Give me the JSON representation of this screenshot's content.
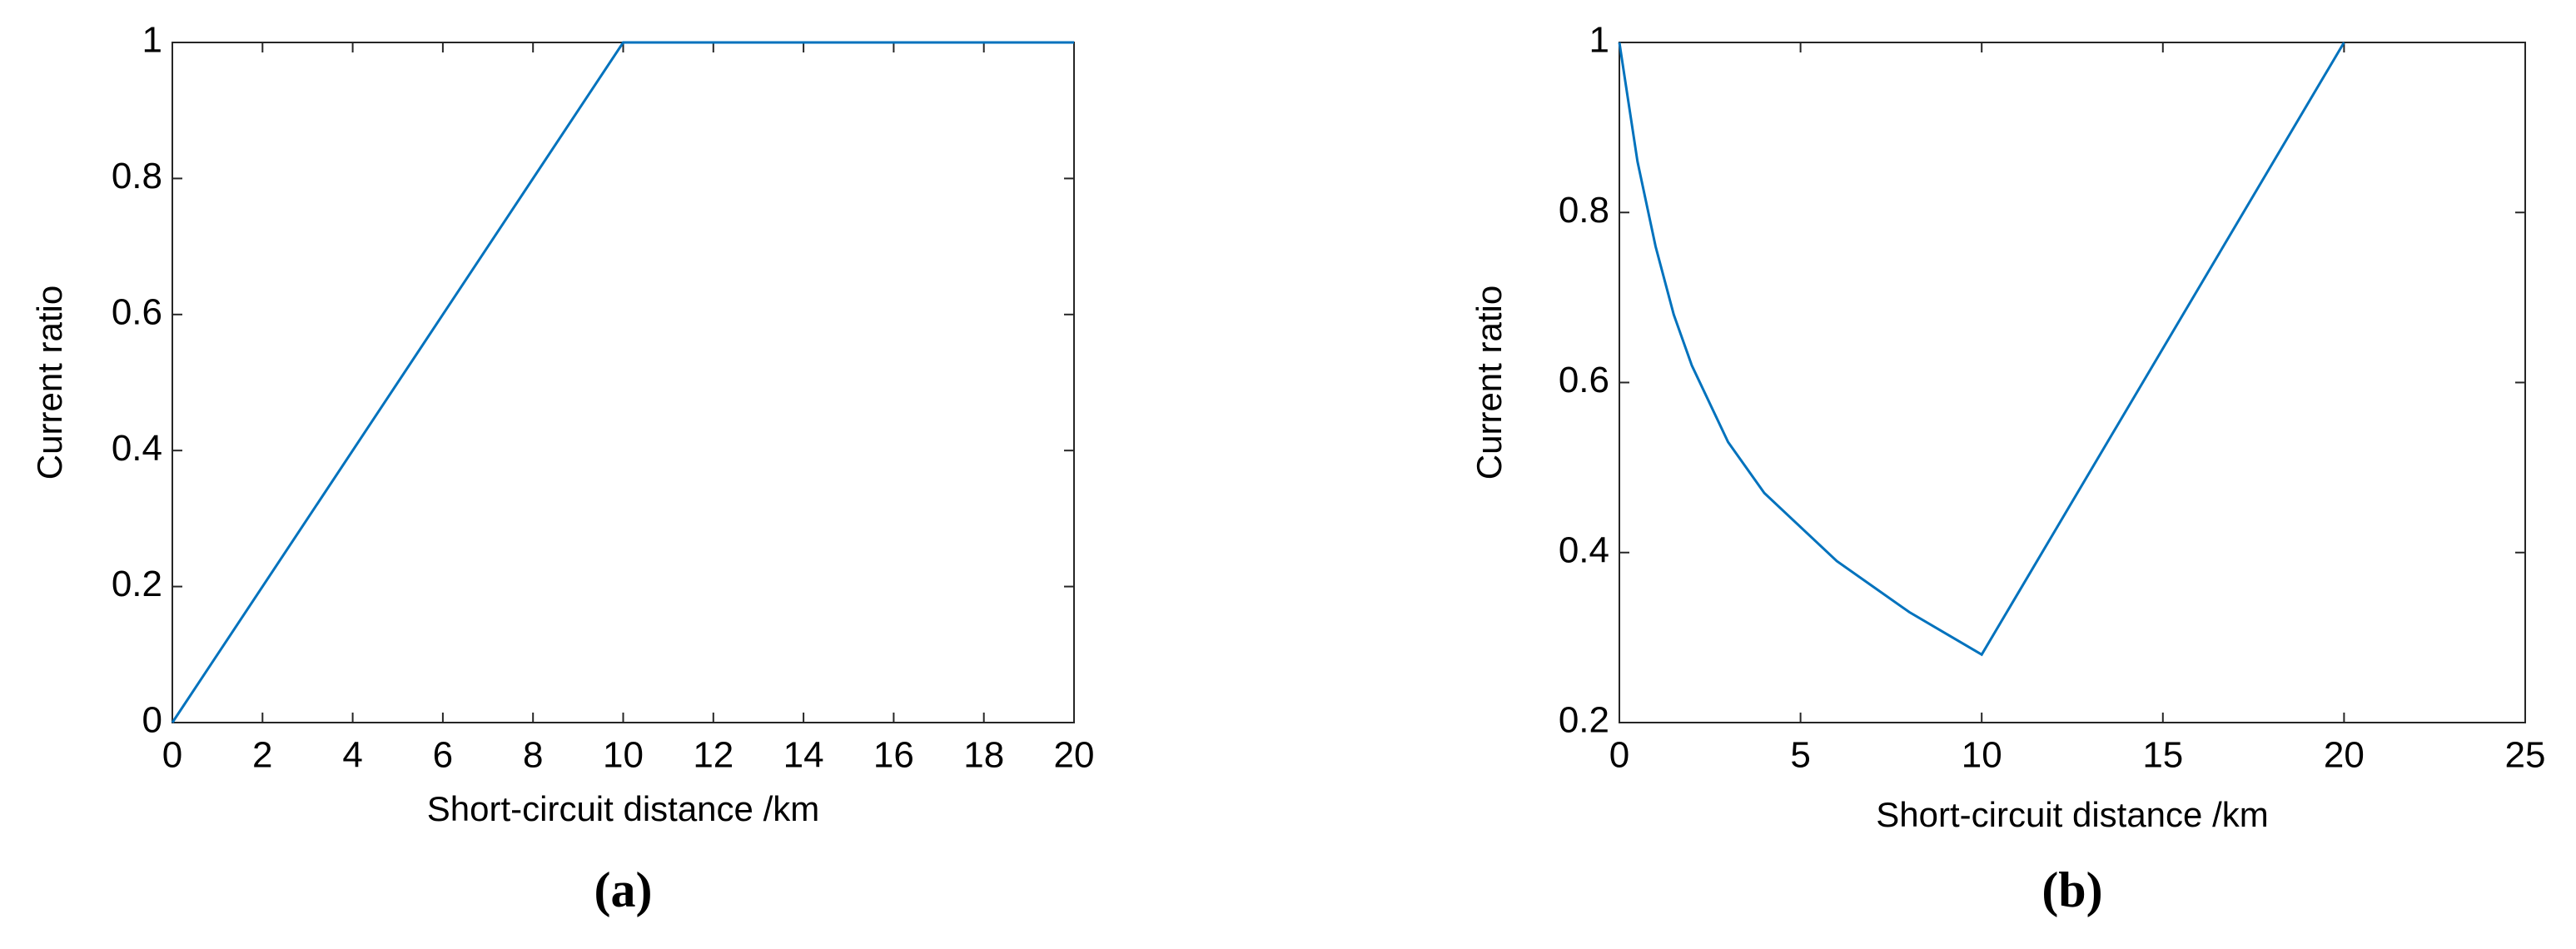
{
  "chart_data": [
    {
      "type": "line",
      "caption": "(a)",
      "ylabel": "Current ratio",
      "xlabel": "Short-circuit distance /km",
      "x": [
        0,
        10,
        20
      ],
      "values": [
        0,
        1,
        1
      ],
      "color": "#0072bd",
      "xlim": [
        0,
        20
      ],
      "xticks": [
        0,
        2,
        4,
        6,
        8,
        10,
        12,
        14,
        16,
        18,
        20
      ],
      "ylim": [
        0,
        1
      ],
      "yticks": [
        0,
        0.2,
        0.4,
        0.6,
        0.8,
        1
      ]
    },
    {
      "type": "line",
      "caption": "(b)",
      "ylabel": "Current ratio",
      "xlabel": "Short-circuit distance /km",
      "x": [
        0,
        0.5,
        1,
        1.5,
        2,
        3,
        4,
        5,
        6,
        7,
        8,
        9,
        10,
        20
      ],
      "values": [
        1,
        0.86,
        0.76,
        0.68,
        0.62,
        0.53,
        0.47,
        0.43,
        0.39,
        0.36,
        0.33,
        0.305,
        0.28,
        1
      ],
      "color": "#0072bd",
      "xlim": [
        0,
        25
      ],
      "xticks": [
        0,
        5,
        10,
        15,
        20,
        25
      ],
      "ylim": [
        0.2,
        1
      ],
      "yticks": [
        0.2,
        0.4,
        0.6,
        0.8,
        1
      ]
    }
  ]
}
